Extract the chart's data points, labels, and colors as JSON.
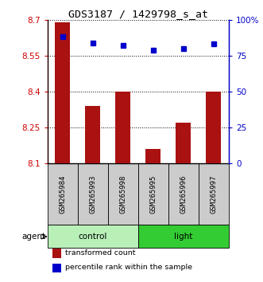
{
  "title": "GDS3187 / 1429798_s_at",
  "samples": [
    "GSM265984",
    "GSM265993",
    "GSM265998",
    "GSM265995",
    "GSM265996",
    "GSM265997"
  ],
  "bar_values": [
    8.69,
    8.34,
    8.4,
    8.16,
    8.27,
    8.4
  ],
  "percentile_values": [
    88,
    84,
    82,
    79,
    80,
    83
  ],
  "ylim_left": [
    8.1,
    8.7
  ],
  "ylim_right": [
    0,
    100
  ],
  "yticks_left": [
    8.1,
    8.25,
    8.4,
    8.55,
    8.7
  ],
  "yticks_right": [
    0,
    25,
    50,
    75,
    100
  ],
  "ytick_labels_right": [
    "0",
    "25",
    "50",
    "75",
    "100%"
  ],
  "bar_color": "#aa1111",
  "square_color": "#0000cc",
  "groups": [
    {
      "label": "control",
      "start": 0,
      "end": 3,
      "color": "#b8f0b8"
    },
    {
      "label": "light",
      "start": 3,
      "end": 6,
      "color": "#33cc33"
    }
  ],
  "agent_label": "agent",
  "legend_items": [
    {
      "label": "transformed count",
      "color": "#aa1111",
      "marker": "s"
    },
    {
      "label": "percentile rank within the sample",
      "color": "#0000cc",
      "marker": "s"
    }
  ],
  "background_color": "#ffffff",
  "title_fontsize": 9.5,
  "tick_fontsize": 7.5,
  "bar_width": 0.5,
  "sample_box_color": "#cccccc"
}
